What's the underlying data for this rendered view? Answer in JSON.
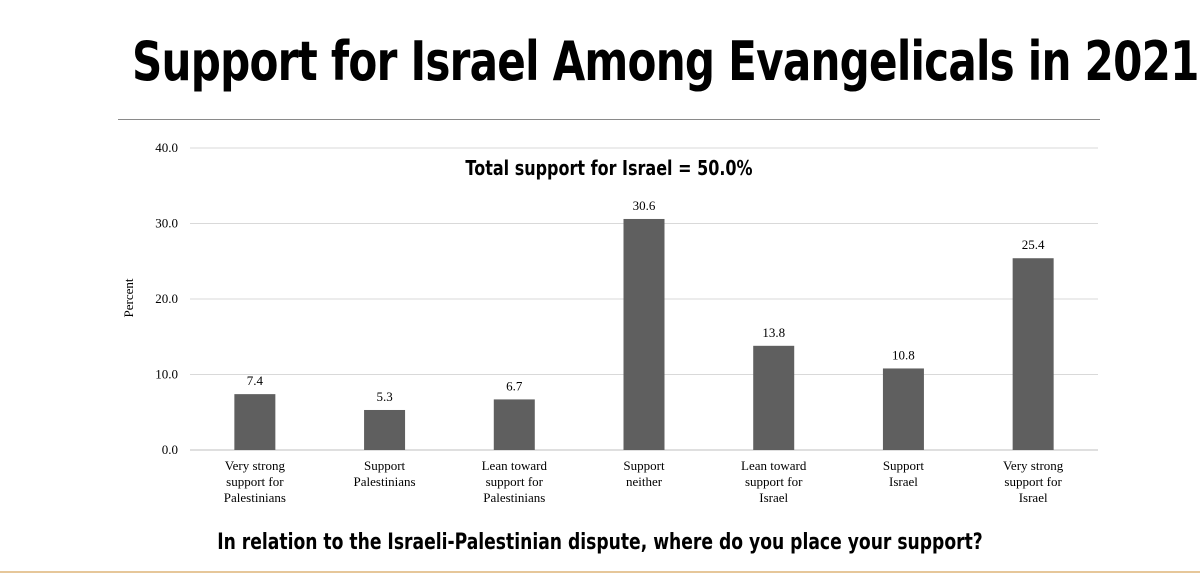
{
  "title": "Support for Israel Among Evangelicals in 2021",
  "annotation": "Total support for Israel = 50.0%",
  "question": "In relation to the Israeli-Palestinian dispute, where do you place your support?",
  "colors": {
    "bar": "#5f5f5f",
    "grid": "#d9d9d9",
    "axis": "#bfbfbf"
  },
  "chart_data": {
    "type": "bar",
    "title": "Support for Israel Among Evangelicals in 2021",
    "xlabel": "In relation to the Israeli-Palestinian dispute, where do you place your support?",
    "ylabel": "Percent",
    "ylim": [
      0,
      40
    ],
    "yticks": [
      "0.0",
      "10.0",
      "20.0",
      "30.0",
      "40.0"
    ],
    "grid": true,
    "categories": [
      [
        "Very strong",
        "support for",
        "Palestinians"
      ],
      [
        "Support",
        "Palestinians"
      ],
      [
        "Lean toward",
        "support for",
        "Palestinians"
      ],
      [
        "Support",
        "neither"
      ],
      [
        "Lean toward",
        "support for",
        "Israel"
      ],
      [
        "Support",
        "Israel"
      ],
      [
        "Very strong",
        "support for",
        "Israel"
      ]
    ],
    "values": [
      7.4,
      5.3,
      6.7,
      30.6,
      13.8,
      10.8,
      25.4
    ],
    "value_labels": [
      "7.4",
      "5.3",
      "6.7",
      "30.6",
      "13.8",
      "10.8",
      "25.4"
    ],
    "annotations": [
      "Total support for Israel = 50.0%"
    ]
  }
}
